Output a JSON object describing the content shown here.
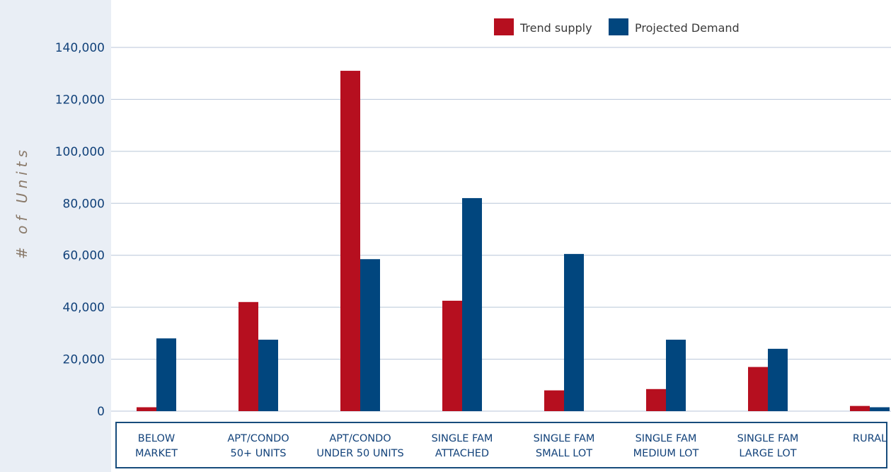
{
  "chart_data": {
    "type": "bar",
    "title": "",
    "xlabel": "",
    "ylabel": "# of Units",
    "ylim": [
      0,
      140000
    ],
    "yticks": [
      0,
      20000,
      40000,
      60000,
      80000,
      100000,
      120000,
      140000
    ],
    "ytick_labels": [
      "0",
      "20,000",
      "40,000",
      "60,000",
      "80,000",
      "100,000",
      "120,000",
      "140,000"
    ],
    "grid": true,
    "legend_position": "top-right",
    "categories": [
      [
        "BELOW",
        "MARKET"
      ],
      [
        "APT/CONDO",
        "50+ UNITS"
      ],
      [
        "APT/CONDO",
        "UNDER 50 UNITS"
      ],
      [
        "SINGLE FAM",
        "ATTACHED"
      ],
      [
        "SINGLE FAM",
        "SMALL LOT"
      ],
      [
        "SINGLE FAM",
        "MEDIUM LOT"
      ],
      [
        "SINGLE FAM",
        "LARGE LOT"
      ],
      [
        "RURAL"
      ]
    ],
    "series": [
      {
        "name": "Trend supply",
        "color": "#b60f1f",
        "values": [
          1500,
          42000,
          131000,
          42500,
          8000,
          8500,
          17000,
          2000
        ]
      },
      {
        "name": "Projected Demand",
        "color": "#01467e",
        "values": [
          28000,
          27500,
          58500,
          82000,
          60500,
          27500,
          24000,
          1500
        ]
      }
    ],
    "colors": {
      "background": "#e9eef5",
      "plot_background": "#ffffff",
      "grid": "#b8c6d8",
      "axis_text": "#12427a",
      "axis_title": "#8a7a6a",
      "category_border": "#174c7c"
    }
  }
}
